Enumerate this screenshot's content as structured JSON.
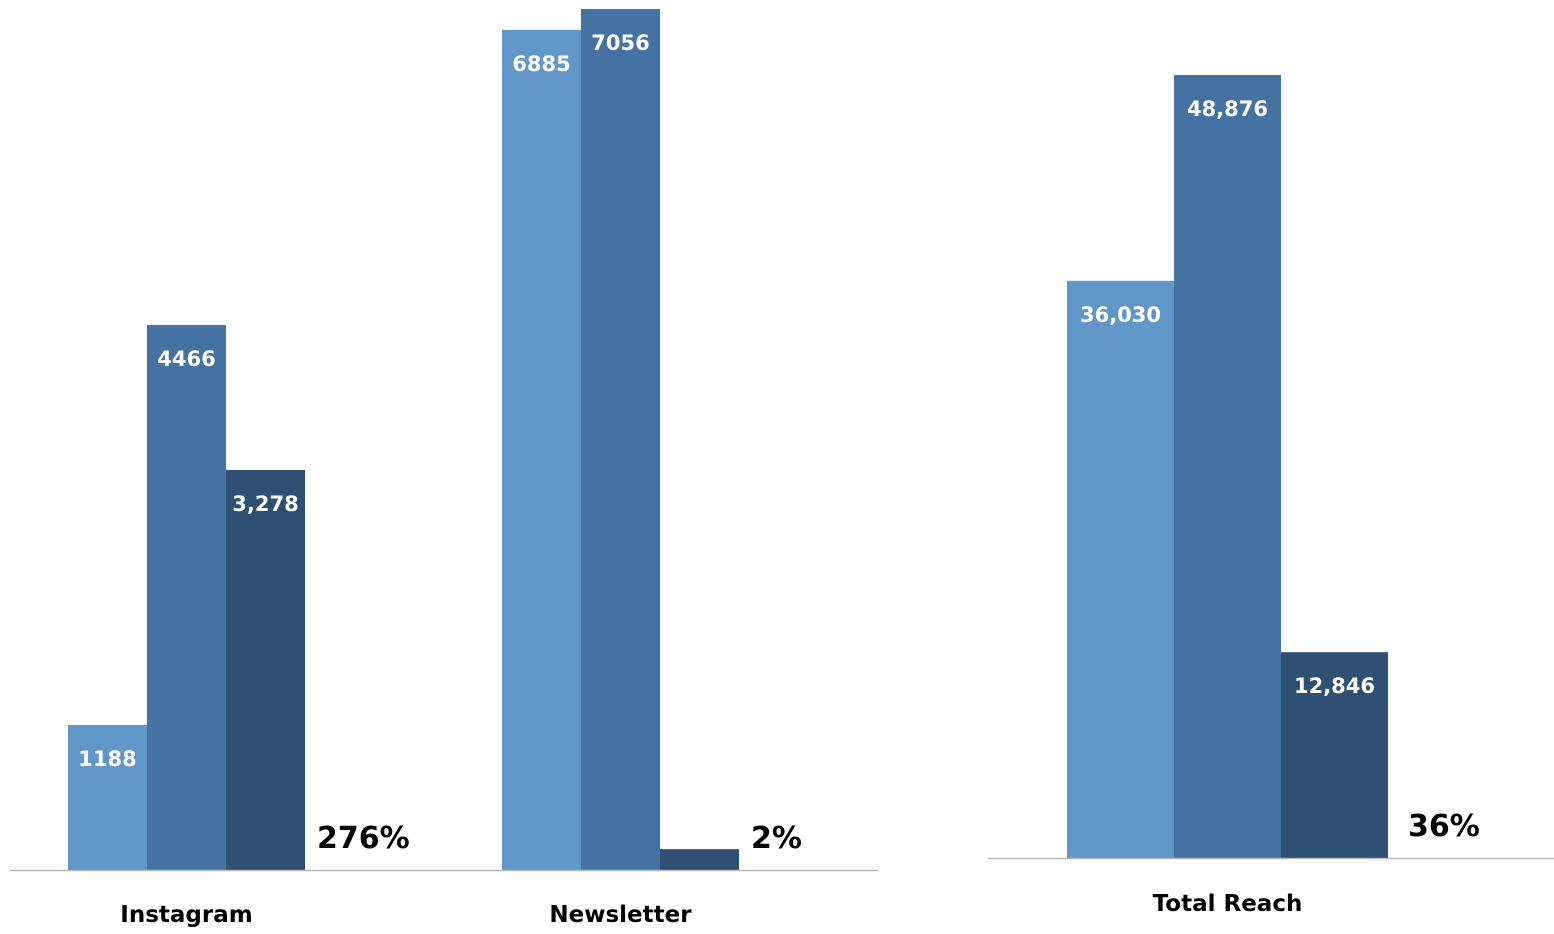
{
  "chart_data": [
    {
      "type": "bar",
      "categories": [
        "Instagram",
        "Newsletter"
      ],
      "series": [
        {
          "color": "#6196C9",
          "values": [
            1188,
            6885
          ],
          "labels": [
            "1188",
            "6885"
          ]
        },
        {
          "color": "#4472A2",
          "values": [
            4466,
            7056
          ],
          "labels": [
            "4466",
            "7056"
          ]
        },
        {
          "color": "#2F5072",
          "values": [
            3278,
            171
          ],
          "labels": [
            "3,278",
            ""
          ]
        }
      ],
      "change_labels": [
        "276%",
        "2%"
      ],
      "ylim": [
        0,
        7056
      ],
      "grid": false,
      "legend": "none"
    },
    {
      "type": "bar",
      "categories": [
        "Total Reach"
      ],
      "series": [
        {
          "color": "#6196C9",
          "values": [
            36030
          ],
          "labels": [
            "36,030"
          ]
        },
        {
          "color": "#4472A2",
          "values": [
            48876
          ],
          "labels": [
            "48,876"
          ]
        },
        {
          "color": "#2F5072",
          "values": [
            12846
          ],
          "labels": [
            "12,846"
          ]
        }
      ],
      "change_labels": [
        "36%"
      ],
      "ylim": [
        0,
        48876
      ],
      "grid": false,
      "legend": "none"
    }
  ],
  "colors": {
    "baseline": "#B7B7B7",
    "bar_label": "#FFFFFF",
    "text": "#000000"
  }
}
